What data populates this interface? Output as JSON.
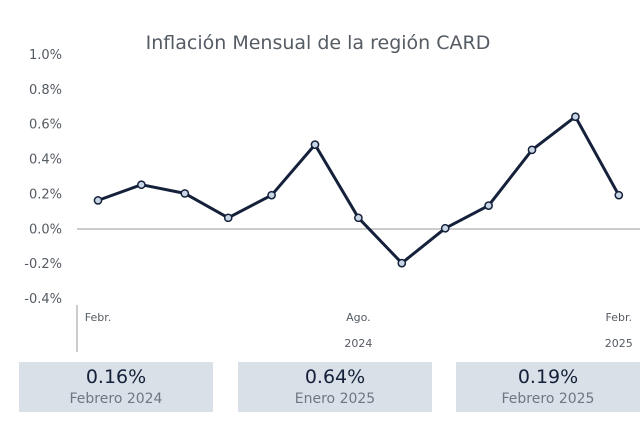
{
  "chart_data": {
    "type": "line",
    "title": "Inflación Mensual de la región CARD",
    "ylim": [
      -0.4,
      1.0
    ],
    "yticks": [
      "1.0%",
      "0.8%",
      "0.6%",
      "0.4%",
      "0.2%",
      "0.0%",
      "-0.2%",
      "-0.4%"
    ],
    "ytick_values": [
      1.0,
      0.8,
      0.6,
      0.4,
      0.2,
      0.0,
      -0.2,
      -0.4
    ],
    "x_tick_labels": [
      {
        "index": 0,
        "label": "Febr."
      },
      {
        "index": 6,
        "label": "Ago."
      },
      {
        "index": 12,
        "label": "Febr."
      }
    ],
    "year_labels": [
      {
        "index": 6,
        "label": "2024"
      },
      {
        "index": 12,
        "label": "2025"
      }
    ],
    "series": [
      {
        "values": [
          0.16,
          0.25,
          0.2,
          0.06,
          0.19,
          0.48,
          0.06,
          -0.2,
          0.0,
          0.13,
          0.45,
          0.64,
          0.19
        ]
      }
    ],
    "line_color": "#15203a",
    "marker_fill": "#c9d6e6",
    "grid": false
  },
  "stats": [
    {
      "value": "0.16%",
      "label": "Febrero 2024"
    },
    {
      "value": "0.64%",
      "label": "Enero 2025"
    },
    {
      "value": "0.19%",
      "label": "Febrero 2025"
    }
  ]
}
